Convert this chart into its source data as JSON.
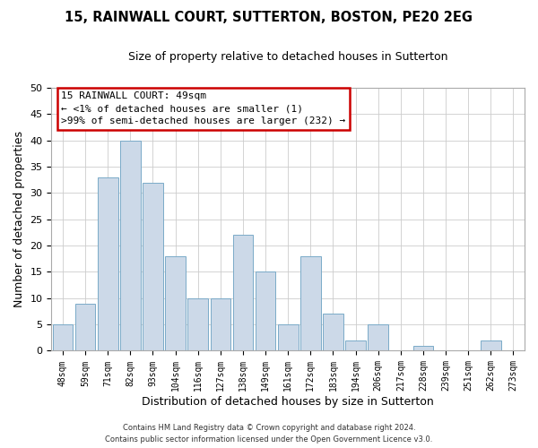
{
  "title": "15, RAINWALL COURT, SUTTERTON, BOSTON, PE20 2EG",
  "subtitle": "Size of property relative to detached houses in Sutterton",
  "xlabel": "Distribution of detached houses by size in Sutterton",
  "ylabel": "Number of detached properties",
  "bar_color": "#ccd9e8",
  "bar_edge_color": "#7aaac8",
  "background_color": "#ffffff",
  "grid_color": "#cccccc",
  "bin_labels": [
    "48sqm",
    "59sqm",
    "71sqm",
    "82sqm",
    "93sqm",
    "104sqm",
    "116sqm",
    "127sqm",
    "138sqm",
    "149sqm",
    "161sqm",
    "172sqm",
    "183sqm",
    "194sqm",
    "206sqm",
    "217sqm",
    "228sqm",
    "239sqm",
    "251sqm",
    "262sqm",
    "273sqm"
  ],
  "values": [
    5,
    9,
    33,
    40,
    32,
    18,
    10,
    10,
    22,
    15,
    5,
    18,
    7,
    2,
    5,
    0,
    1,
    0,
    0,
    2,
    0
  ],
  "ylim": [
    0,
    50
  ],
  "yticks": [
    0,
    5,
    10,
    15,
    20,
    25,
    30,
    35,
    40,
    45,
    50
  ],
  "annotation_title": "15 RAINWALL COURT: 49sqm",
  "annotation_line1": "← <1% of detached houses are smaller (1)",
  "annotation_line2": ">99% of semi-detached houses are larger (232) →",
  "annotation_box_edge": "#cc0000",
  "footer_line1": "Contains HM Land Registry data © Crown copyright and database right 2024.",
  "footer_line2": "Contains public sector information licensed under the Open Government Licence v3.0."
}
